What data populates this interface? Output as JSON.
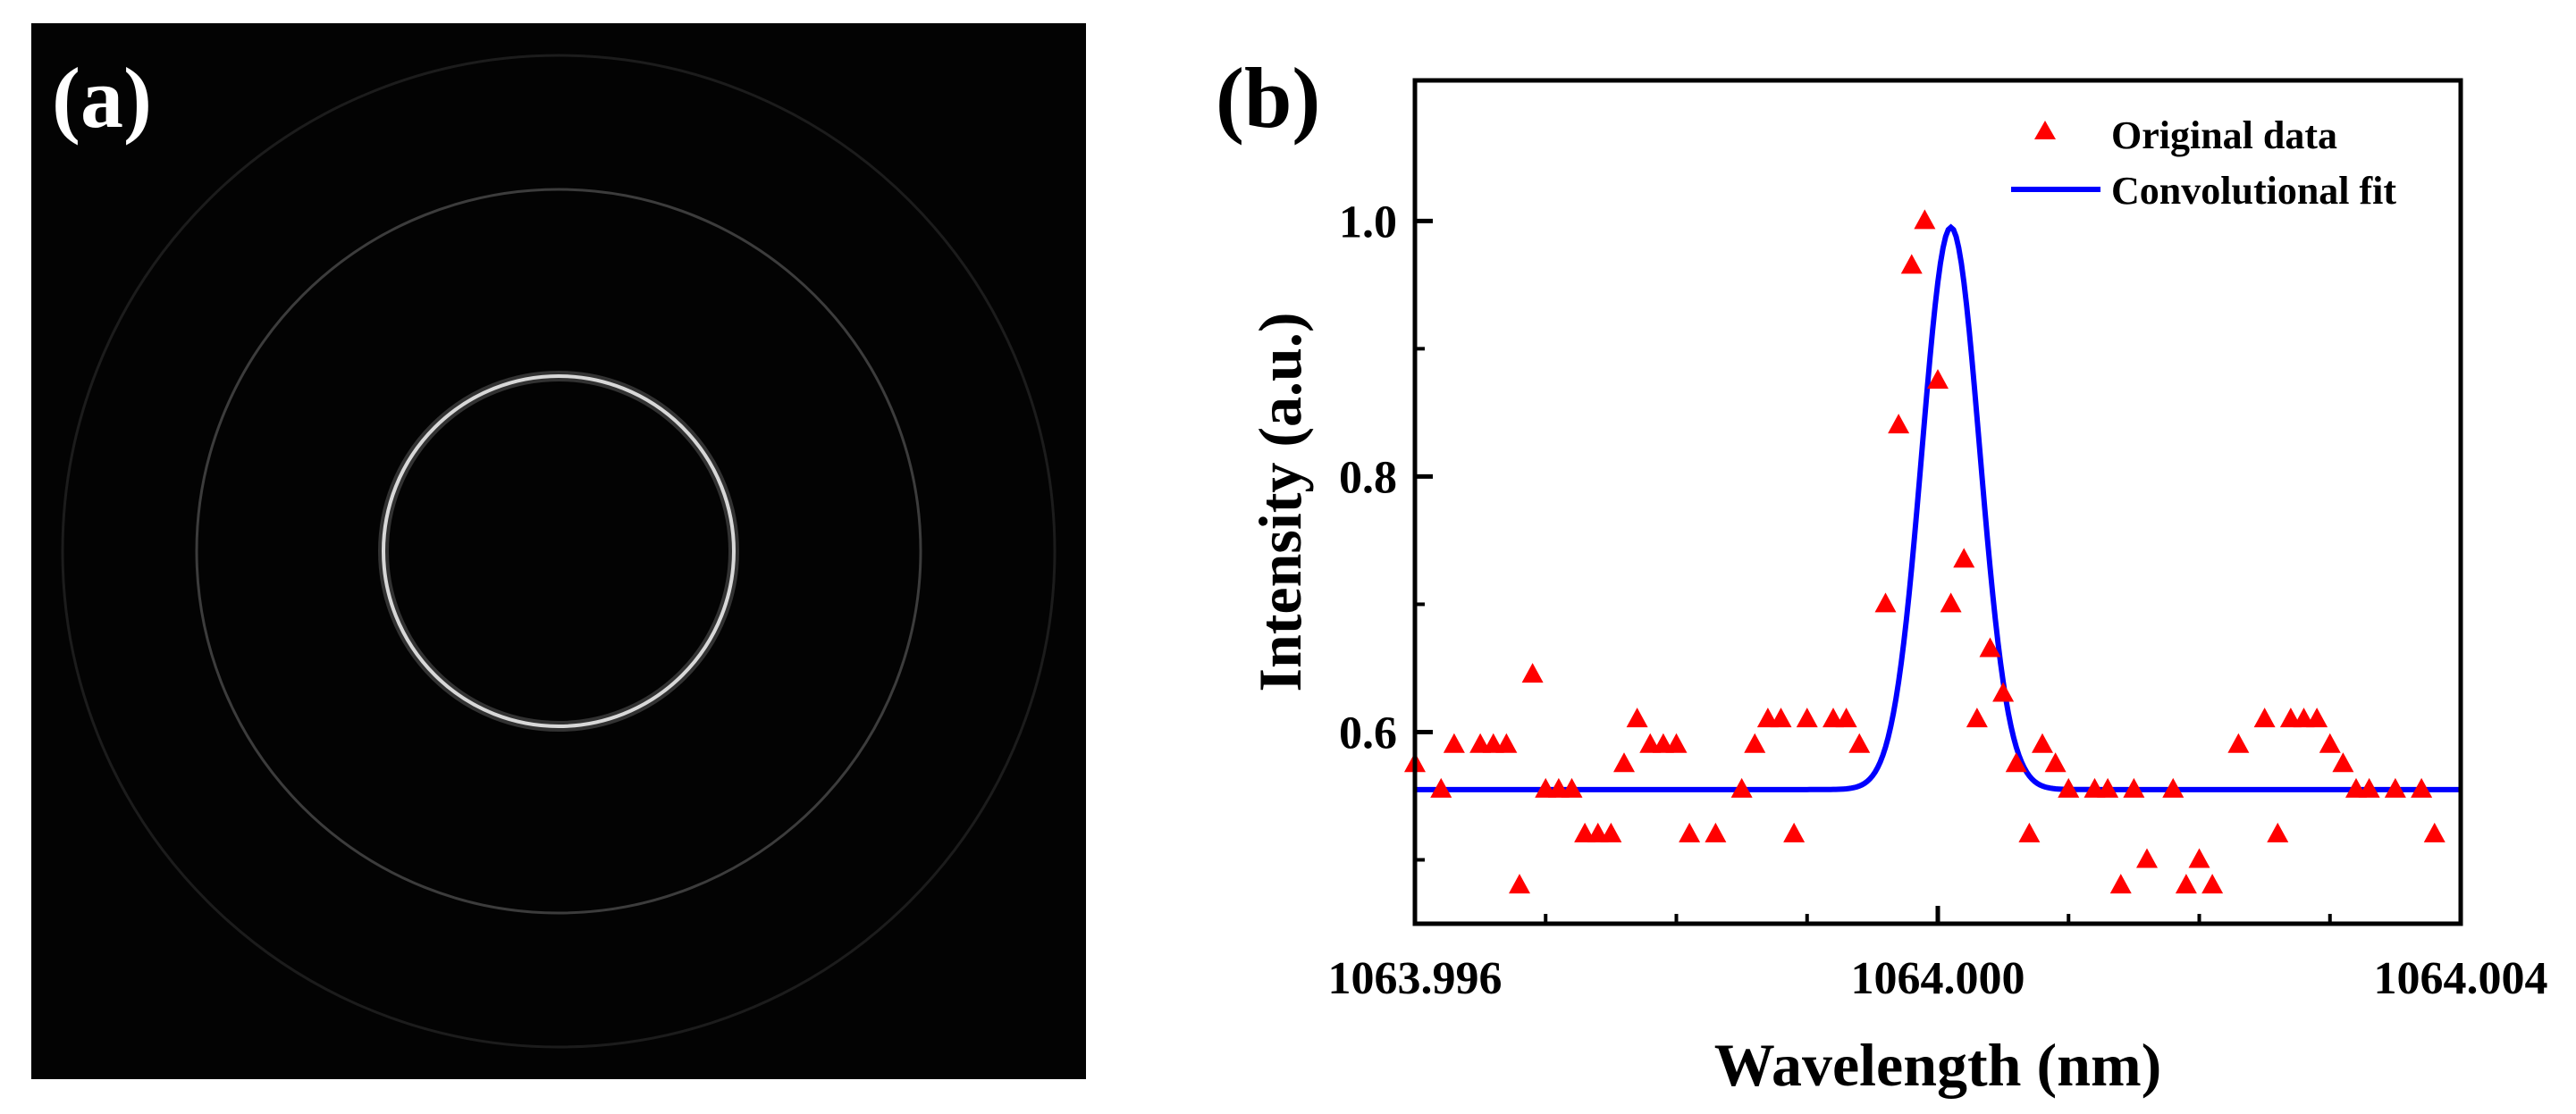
{
  "panel_a": {
    "label": "(a)"
  },
  "panel_b": {
    "label": "(b)"
  },
  "chart_data": {
    "type": "scatter",
    "xlabel": "Wavelength (nm)",
    "ylabel": "Intensity (a.u.)",
    "xlim": [
      1063.996,
      1064.004
    ],
    "ylim": [
      0.45,
      1.11
    ],
    "x_ticks": [
      1063.996,
      1064.0,
      1064.004
    ],
    "x_tick_labels": [
      "1063.996",
      "1064.000",
      "1064.004"
    ],
    "x_minor_ticks": [
      1063.997,
      1063.998,
      1063.999,
      1064.001,
      1064.002,
      1064.003
    ],
    "y_ticks": [
      0.6,
      0.8,
      1.0
    ],
    "y_tick_labels": [
      "0.6",
      "0.8",
      "1.0"
    ],
    "y_minor_ticks": [
      0.5,
      0.7,
      0.9
    ],
    "grid": false,
    "legend_position": "top-right",
    "series": [
      {
        "name": "Original data",
        "kind": "scatter",
        "marker": "triangle",
        "color": "#ff0000",
        "x": [
          1063.996,
          1063.9962,
          1063.9963,
          1063.9965,
          1063.9966,
          1063.9967,
          1063.9968,
          1063.9969,
          1063.997,
          1063.9971,
          1063.9972,
          1063.9973,
          1063.9974,
          1063.9975,
          1063.9976,
          1063.9977,
          1063.9978,
          1063.9979,
          1063.998,
          1063.9981,
          1063.9983,
          1063.9985,
          1063.9986,
          1063.9987,
          1063.9988,
          1063.9989,
          1063.999,
          1063.9992,
          1063.9993,
          1063.9994,
          1063.9996,
          1063.9997,
          1063.9998,
          1063.9999,
          1064.0,
          1064.0001,
          1064.0002,
          1064.0003,
          1064.0004,
          1064.0005,
          1064.0006,
          1064.0007,
          1064.0008,
          1064.0009,
          1064.001,
          1064.0012,
          1064.0013,
          1064.0014,
          1064.0015,
          1064.0016,
          1064.0018,
          1064.0019,
          1064.002,
          1064.0021,
          1064.0023,
          1064.0025,
          1064.0026,
          1064.0027,
          1064.0028,
          1064.0029,
          1064.003,
          1064.0031,
          1064.0032,
          1064.0033,
          1064.0035,
          1064.0037,
          1064.0038
        ],
        "y": [
          0.575,
          0.555,
          0.59,
          0.59,
          0.59,
          0.59,
          0.48,
          0.645,
          0.555,
          0.555,
          0.555,
          0.52,
          0.52,
          0.52,
          0.575,
          0.61,
          0.59,
          0.59,
          0.59,
          0.52,
          0.52,
          0.555,
          0.59,
          0.61,
          0.61,
          0.52,
          0.61,
          0.61,
          0.61,
          0.59,
          0.7,
          0.84,
          0.965,
          1.0,
          0.875,
          0.7,
          0.735,
          0.61,
          0.665,
          0.63,
          0.575,
          0.52,
          0.59,
          0.575,
          0.555,
          0.555,
          0.555,
          0.48,
          0.555,
          0.5,
          0.555,
          0.48,
          0.5,
          0.48,
          0.59,
          0.61,
          0.52,
          0.61,
          0.61,
          0.61,
          0.59,
          0.575,
          0.555,
          0.555,
          0.555,
          0.555,
          0.52
        ]
      },
      {
        "name": "Convolutional fit",
        "kind": "line",
        "color": "#0000ff",
        "baseline": 0.555,
        "amplitude": 0.44,
        "center": 1064.0001,
        "sigma": 0.00022
      }
    ]
  }
}
